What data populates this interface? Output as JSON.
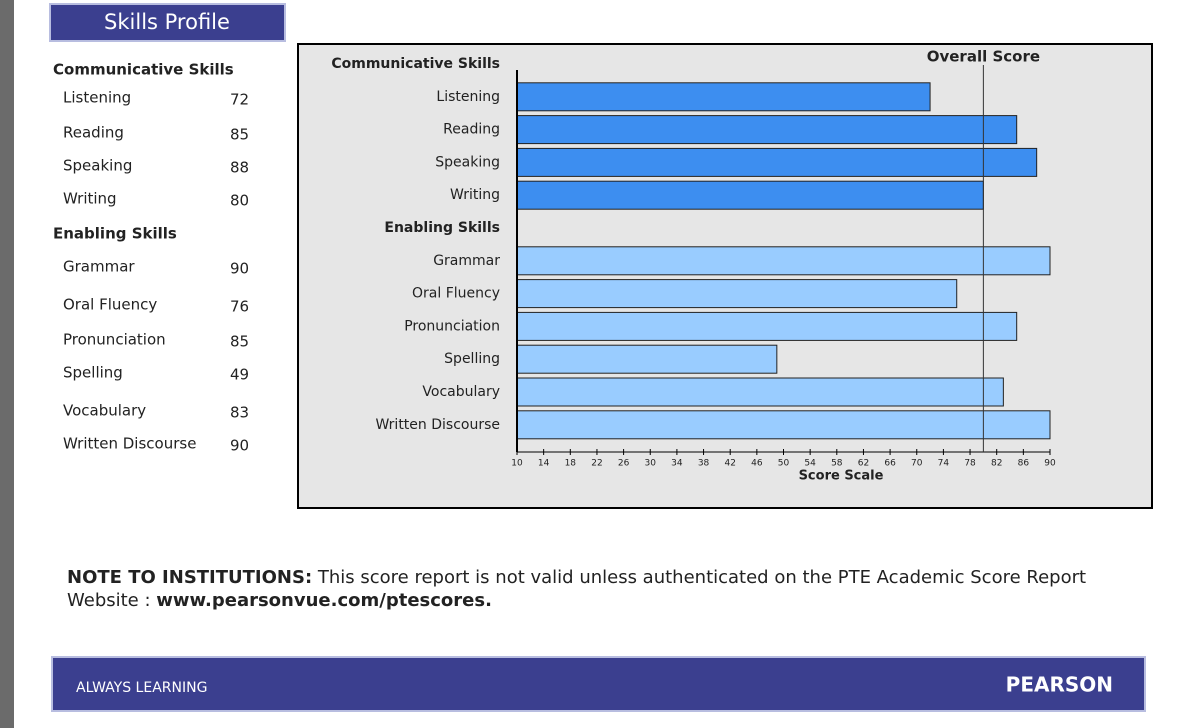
{
  "header": {
    "title": "Skills Profile"
  },
  "skills_profile": {
    "sections": [
      {
        "title": "Communicative Skills",
        "items": [
          {
            "label": "Listening",
            "score": "72"
          },
          {
            "label": "Reading",
            "score": "85"
          },
          {
            "label": "Speaking",
            "score": "88"
          },
          {
            "label": "Writing",
            "score": "80"
          }
        ]
      },
      {
        "title": "Enabling Skills",
        "items": [
          {
            "label": "Grammar",
            "score": "90"
          },
          {
            "label": "Oral Fluency",
            "score": "76"
          },
          {
            "label": "Pronunciation",
            "score": "85"
          },
          {
            "label": "Spelling",
            "score": "49"
          },
          {
            "label": "Vocabulary",
            "score": "83"
          },
          {
            "label": "Written Discourse",
            "score": "90"
          }
        ]
      }
    ]
  },
  "chart_data": {
    "type": "bar",
    "orientation": "horizontal",
    "xlabel": "Score Scale",
    "overall_score": {
      "label": "Overall Score",
      "value": 80
    },
    "xlim": [
      10,
      90
    ],
    "xticks": [
      10,
      14,
      18,
      22,
      26,
      30,
      34,
      38,
      42,
      46,
      50,
      54,
      58,
      62,
      66,
      70,
      74,
      78,
      82,
      86,
      90
    ],
    "series": [
      {
        "name": "Communicative Skills",
        "color": "#3d8ef0",
        "categories": [
          "Listening",
          "Reading",
          "Speaking",
          "Writing"
        ],
        "values": [
          72,
          85,
          88,
          80
        ]
      },
      {
        "name": "Enabling Skills",
        "color": "#99ccff",
        "categories": [
          "Grammar",
          "Oral Fluency",
          "Pronunciation",
          "Spelling",
          "Vocabulary",
          "Written Discourse"
        ],
        "values": [
          90,
          76,
          85,
          49,
          83,
          90
        ]
      }
    ]
  },
  "note": {
    "label": "NOTE TO INSTITUTIONS:",
    "text": "This score report is not valid unless authenticated on the PTE Academic Score Report Website :",
    "url": "www.pearsonvue.com/ptescores."
  },
  "footer": {
    "left": "ALWAYS LEARNING",
    "right": "PEARSON"
  }
}
